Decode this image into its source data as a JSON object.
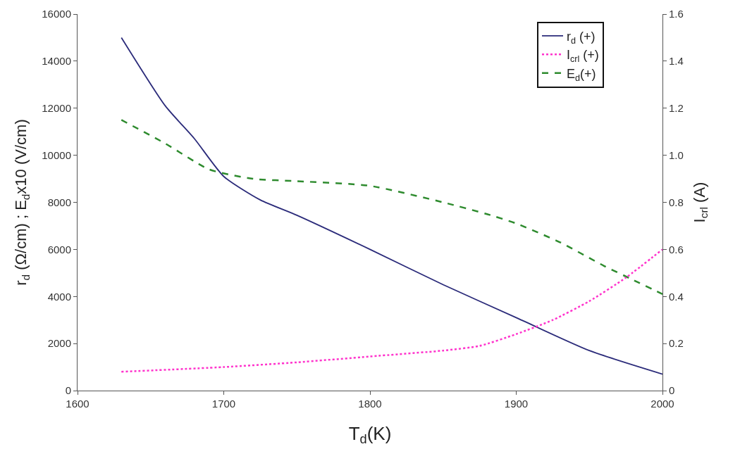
{
  "chart_data": {
    "type": "line",
    "xlabel": "T$_{d}$(K)",
    "ylabel": "r$_{d}$ (Ω/cm) ; E$_{d}$x10 (V/cm)",
    "y2label": "I$_{crl}$ (A)",
    "xlim": [
      1600,
      2000
    ],
    "xticks": [
      1600,
      1700,
      1800,
      1900,
      2000
    ],
    "ylim": [
      0,
      16000
    ],
    "yticks": [
      0,
      2000,
      4000,
      6000,
      8000,
      10000,
      12000,
      14000,
      16000
    ],
    "y2lim": [
      0,
      1.6
    ],
    "y2ticks": [
      {
        "value": 0,
        "label": "0"
      },
      0.2,
      0.4,
      0.6,
      0.8,
      {
        "value": 1.0,
        "label": "1.0"
      },
      1.2,
      1.4,
      1.6
    ],
    "legend": "top right",
    "marker": "none",
    "series": [
      {
        "name": "r$_{d}$ (+)",
        "color": "#2b2b7a",
        "line_style": "solid",
        "x": [
          1630,
          1660,
          1680,
          1700,
          1725,
          1750,
          1800,
          1850,
          1900,
          1950,
          2000
        ],
        "values": [
          15000,
          12100,
          10700,
          9100,
          8100,
          7450,
          6000,
          4500,
          3100,
          1700,
          700
        ]
      },
      {
        "name": "I$_{crl}$ (+)",
        "color": "#ff33cc",
        "line_style": "dotted",
        "axis": "y2",
        "x": [
          1630,
          1700,
          1750,
          1800,
          1850,
          1875,
          1900,
          1925,
          1950,
          1975,
          2000
        ],
        "values": [
          0.08,
          0.1,
          0.12,
          0.145,
          0.17,
          0.19,
          0.24,
          0.3,
          0.38,
          0.48,
          0.6
        ]
      },
      {
        "name": "E$_{d}$(+)",
        "color": "#2e8b2e",
        "line_style": "dashed",
        "x": [
          1630,
          1660,
          1690,
          1720,
          1750,
          1800,
          1850,
          1880,
          1900,
          1930,
          1960,
          1980,
          2000
        ],
        "values": [
          11500,
          10500,
          9400,
          9000,
          8900,
          8700,
          8000,
          7500,
          7100,
          6300,
          5300,
          4700,
          4100
        ]
      }
    ]
  }
}
